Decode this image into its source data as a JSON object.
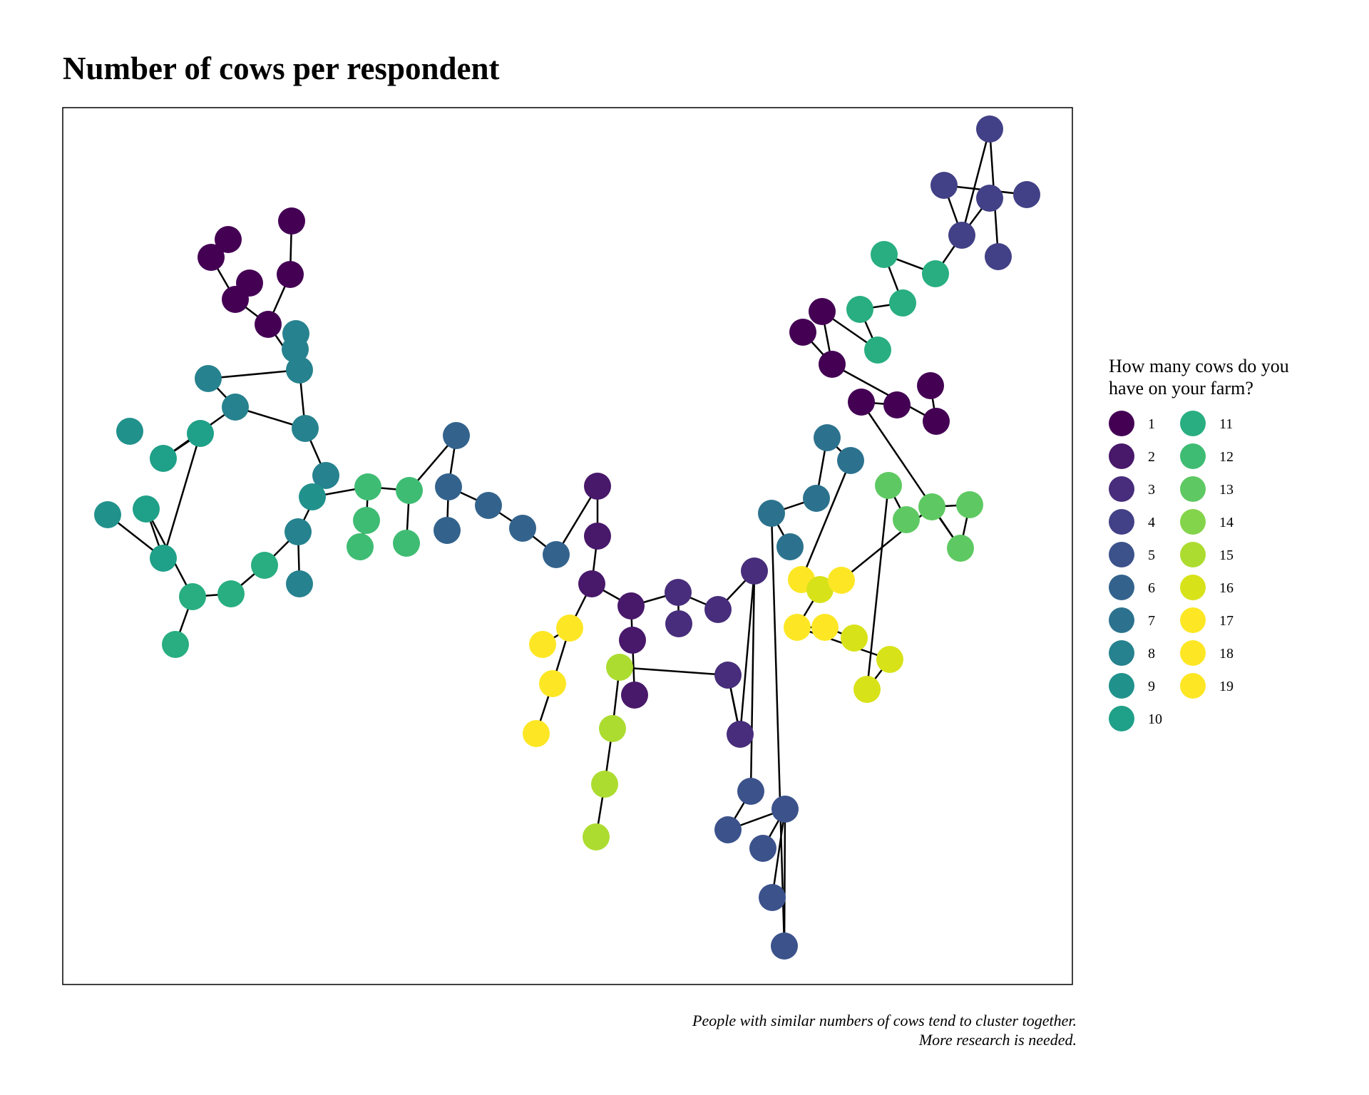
{
  "title": "Number of cows per respondent",
  "legend": {
    "title_line1": "How many cows do you",
    "title_line2": "have on your farm?",
    "items": [
      {
        "label": "1",
        "color": "#440154"
      },
      {
        "label": "2",
        "color": "#48186a"
      },
      {
        "label": "3",
        "color": "#472d7b"
      },
      {
        "label": "4",
        "color": "#424086"
      },
      {
        "label": "5",
        "color": "#3b528b"
      },
      {
        "label": "6",
        "color": "#33638d"
      },
      {
        "label": "7",
        "color": "#2c728e"
      },
      {
        "label": "8",
        "color": "#26828e"
      },
      {
        "label": "9",
        "color": "#21918c"
      },
      {
        "label": "10",
        "color": "#1fa088"
      },
      {
        "label": "11",
        "color": "#28ae80"
      },
      {
        "label": "12",
        "color": "#3fbc73"
      },
      {
        "label": "13",
        "color": "#5ec962"
      },
      {
        "label": "14",
        "color": "#84d44b"
      },
      {
        "label": "15",
        "color": "#addc30"
      },
      {
        "label": "16",
        "color": "#d8e219"
      },
      {
        "label": "17",
        "color": "#fde725"
      },
      {
        "label": "18",
        "color": "#fde725"
      },
      {
        "label": "19",
        "color": "#fde725"
      }
    ]
  },
  "caption": {
    "line1": "People with similar numbers of cows tend to cluster together.",
    "line2": "More research is needed."
  }
}
